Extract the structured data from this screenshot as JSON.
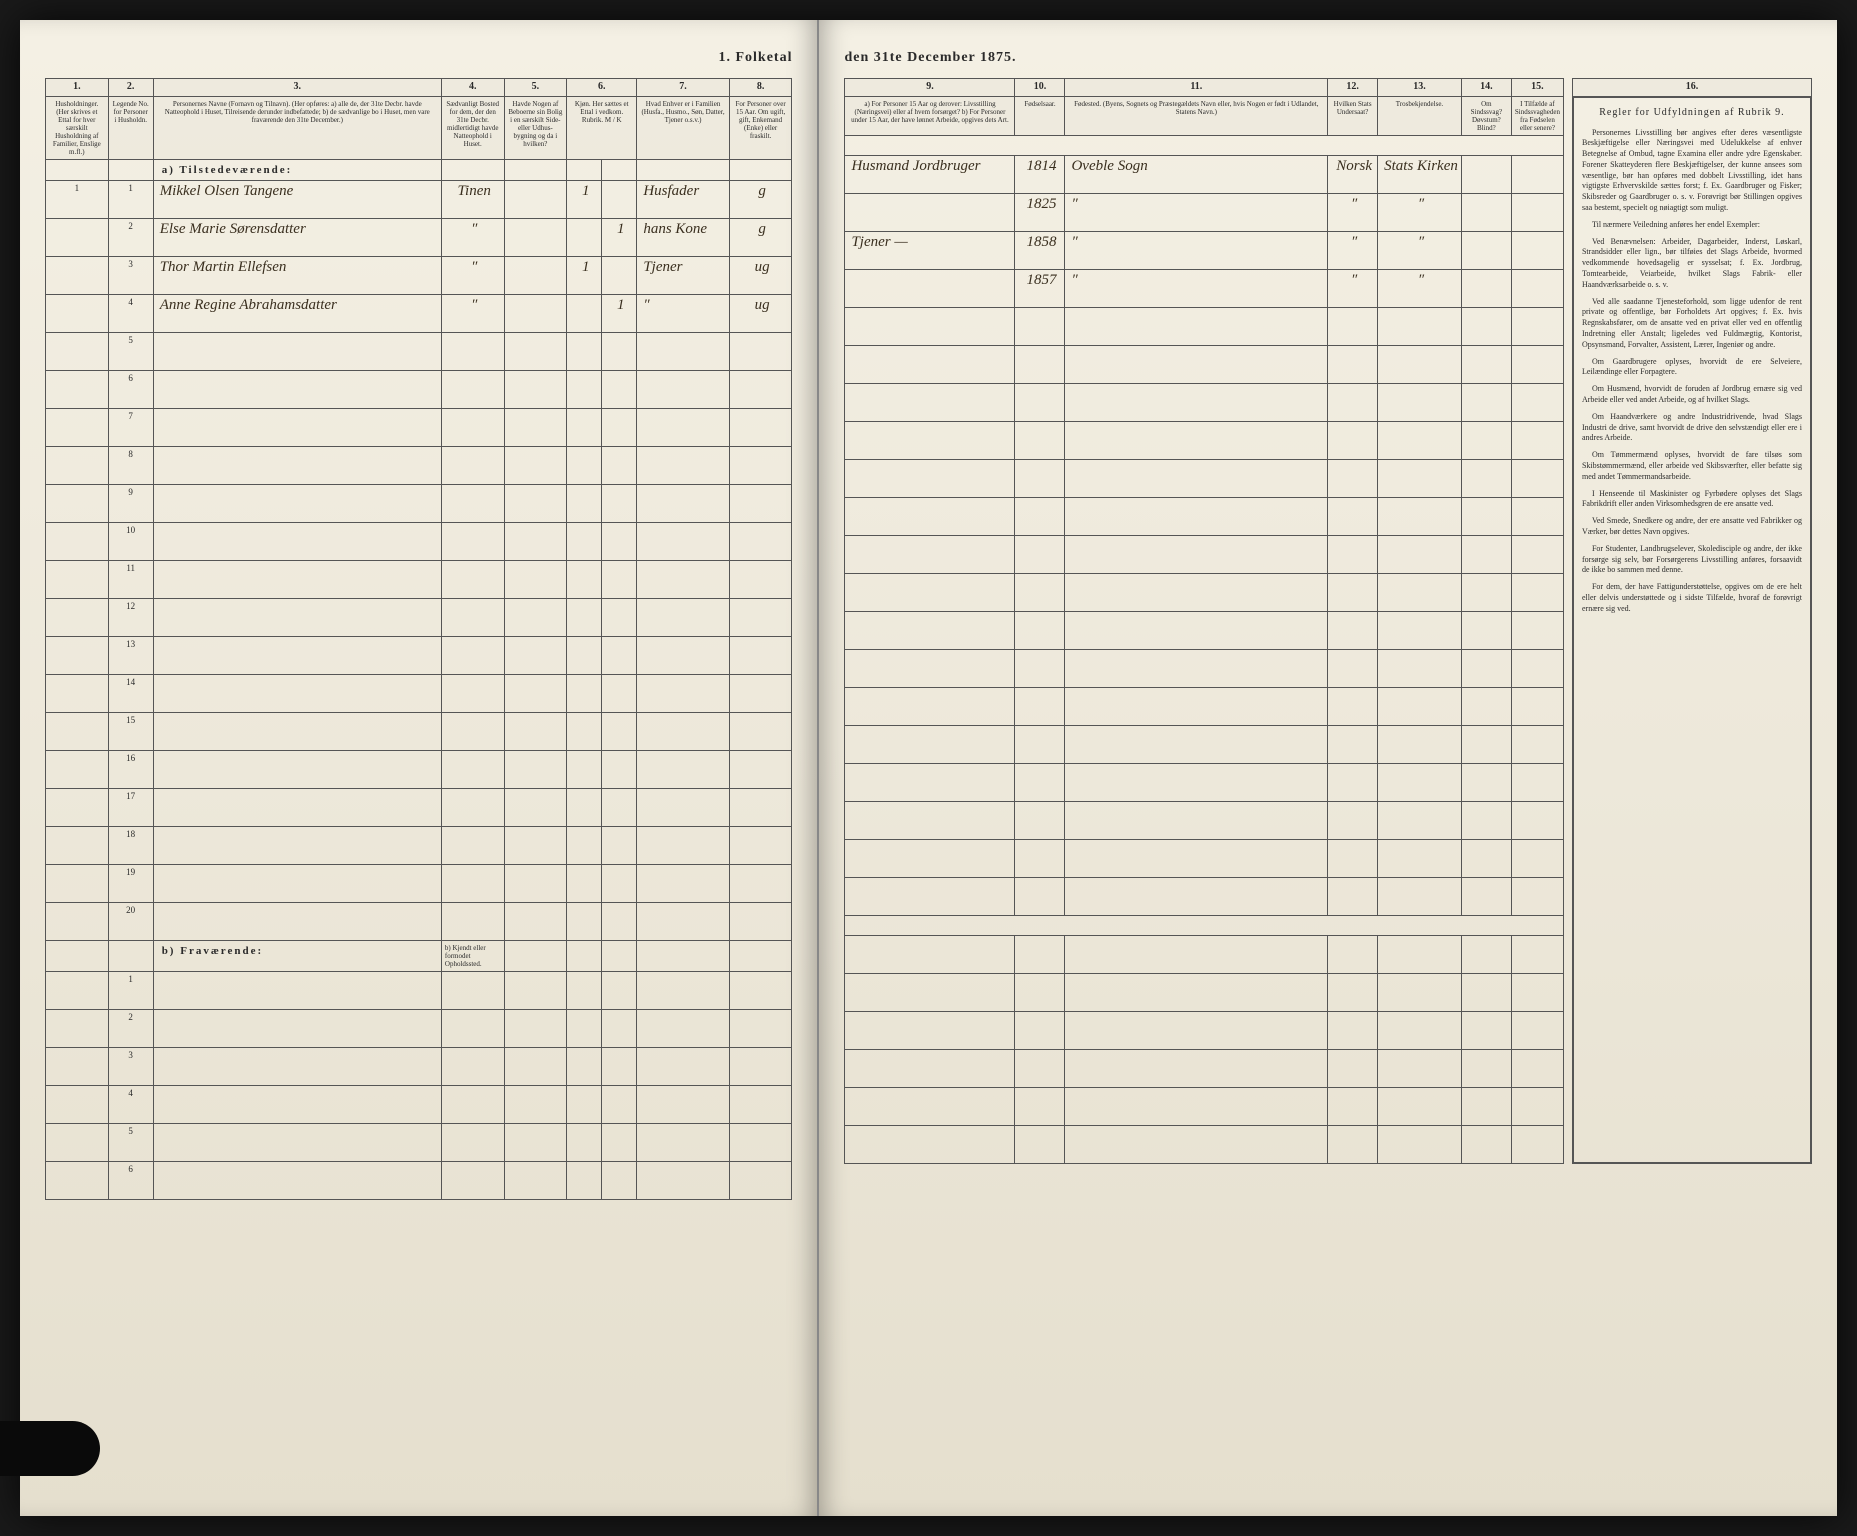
{
  "document": {
    "title_left": "1. Folketal",
    "title_right": "den 31te December 1875.",
    "col_nums_left": [
      "1.",
      "2.",
      "3.",
      "4.",
      "5.",
      "6.",
      "7.",
      "8."
    ],
    "col_nums_right": [
      "9.",
      "10.",
      "11.",
      "12.",
      "13.",
      "14.",
      "15.",
      "16."
    ],
    "headers_left": {
      "c1": "Husholdninger. (Her skrives et Ettal for hver særskilt Husholdning af Familier, Enslige m.fl.)",
      "c2": "Legende No. for Personer i Husholdn.",
      "c3": "Personernes Navne (Fornavn og Tilnavn). (Her opføres: a) alle de, der 31te Decbr. havde Natteophold i Huset, Tilreisende derunder indbefattede; b) de sædvanlige bo i Huset, men vare fraværende den 31te December.)",
      "c4": "Sædvanligt Bosted for dem, der den 31te Decbr. midlertidigt havde Natteophold i Huset.",
      "c5": "Havde Nogen af Beboerne sin Bolig i en særskilt Side- eller Udhus-bygning og da i hvilken?",
      "c6": "Kjøn. Her sættes et Ettal i vedkom. Rubrik. M / K",
      "c7": "Hvad Enhver er i Familien (Husfa., Husmo., Søn, Datter, Tjener o.s.v.)",
      "c8": "For Personer over 15 Aar. Om ugift, gift, Enkemand (Enke) eller fraskilt."
    },
    "headers_right": {
      "c9": "a) For Personer 15 Aar og derover: Livsstilling (Næringsvei) eller af hvem forsørget? b) For Personer under 15 Aar, der have lønnet Arbeide, opgives dets Art.",
      "c10": "Fødselsaar.",
      "c11": "Fødested. (Byens, Sognets og Præstegældets Navn eller, hvis Nogen er født i Udlandet, Statens Navn.)",
      "c12": "Hvilken Stats Undersaat?",
      "c13": "Trosbekjendelse.",
      "c14": "Om Sindssvag? Døvstum? Blind?",
      "c15": "I Tilfælde af Sindssvagheden fra Fødselen eller senere?"
    },
    "section_a": "a) Tilstedeværende:",
    "section_b": "b) Fraværende:",
    "section_b_note": "b) Kjendt eller formodet Opholdssted.",
    "rows_a": [
      "1",
      "2",
      "3",
      "4",
      "5",
      "6",
      "7",
      "8",
      "9",
      "10",
      "11",
      "12",
      "13",
      "14",
      "15",
      "16",
      "17",
      "18",
      "19",
      "20"
    ],
    "rows_b": [
      "1",
      "2",
      "3",
      "4",
      "5",
      "6"
    ],
    "entries": [
      {
        "num": "1",
        "name": "Mikkel Olsen Tangene",
        "bosted": "Tinen",
        "m": "1",
        "k": "",
        "fam": "Husfader",
        "civ": "g",
        "liv": "Husmand Jordbruger",
        "aar": "1814",
        "fsted": "Oveble Sogn",
        "stat": "Norsk",
        "tro": "Stats Kirken"
      },
      {
        "num": "2",
        "name": "Else Marie Sørensdatter",
        "bosted": "″",
        "m": "",
        "k": "1",
        "fam": "hans Kone",
        "civ": "g",
        "liv": "",
        "aar": "1825",
        "fsted": "″",
        "stat": "″",
        "tro": "″"
      },
      {
        "num": "3",
        "name": "Thor Martin Ellefsen",
        "bosted": "″",
        "m": "1",
        "k": "",
        "fam": "Tjener",
        "civ": "ug",
        "liv": "Tjener —",
        "aar": "1858",
        "fsted": "″",
        "stat": "″",
        "tro": "″"
      },
      {
        "num": "4",
        "name": "Anne Regine Abrahamsdatter",
        "bosted": "″",
        "m": "",
        "k": "1",
        "fam": "″",
        "civ": "ug",
        "liv": "",
        "aar": "1857",
        "fsted": "″",
        "stat": "″",
        "tro": "″"
      }
    ],
    "rules": {
      "title": "Regler for Udfyldningen af Rubrik 9.",
      "paras": [
        "Personernes Livsstilling bør angives efter deres væsentligste Beskjæftigelse eller Næringsvei med Udelukkelse af enhver Betegnelse af Ombud, tagne Examina eller andre ydre Egenskaber. Forener Skatteyderen flere Beskjæftigelser, der kunne ansees som væsentlige, bør han opføres med dobbelt Livsstilling, idet hans vigtigste Erhvervskilde sættes forst; f. Ex. Gaardbruger og Fisker; Skibsreder og Gaardbruger o. s. v. Forøvrigt bør Stillingen opgives saa bestemt, specielt og nøiagtigt som muligt.",
        "Til nærmere Veiledning anføres her endel Exempler:",
        "Ved Benævnelsen: Arbeider, Dagarbeider, Inderst, Løskarl, Strandsidder eller lign., bør tilføies det Slags Arbeide, hvormed vedkommende hovedsagelig er sysselsat; f. Ex. Jordbrug, Tomtearbeide, Veiarbeide, hvilket Slags Fabrik- eller Haandværksarbeide o. s. v.",
        "Ved alle saadanne Tjenesteforhold, som ligge udenfor de rent private og offentlige, bør Forholdets Art opgives; f. Ex. hvis Regnskabsfører, om de ansatte ved en privat eller ved en offentlig Indretning eller Anstalt; ligeledes ved Fuldmægtig, Kontorist, Opsynsmand, Forvalter, Assistent, Lærer, Ingeniør og andre.",
        "Om Gaardbrugere oplyses, hvorvidt de ere Selveiere, Leilændinge eller Forpagtere.",
        "Om Husmænd, hvorvidt de foruden af Jordbrug ernære sig ved Arbeide eller ved andet Arbeide, og af hvilket Slags.",
        "Om Haandværkere og andre Industridrivende, hvad Slags Industri de drive, samt hvorvidt de drive den selvstændigt eller ere i andres Arbeide.",
        "Om Tømmermænd oplyses, hvorvidt de fare tilsøs som Skibstømmermænd, eller arbeide ved Skibsværfter, eller befatte sig med andet Tømmermandsarbeide.",
        "I Henseende til Maskinister og Fyrbødere oplyses det Slags Fabrikdrift eller anden Virksomhedsgren de ere ansatte ved.",
        "Ved Smede, Snedkere og andre, der ere ansatte ved Fabrikker og Værker, bør dettes Navn opgives.",
        "For Studenter, Landbrugselever, Skoledisciple og andre, der ikke forsørge sig selv, bør Forsørgerens Livsstilling anføres, forsaavidt de ikke bo sammen med denne.",
        "For dem, der have Fattigunderstøttelse, opgives om de ere helt eller delvis understøttede og i sidste Tilfælde, hvoraf de forøvrigt ernære sig ved."
      ]
    }
  }
}
